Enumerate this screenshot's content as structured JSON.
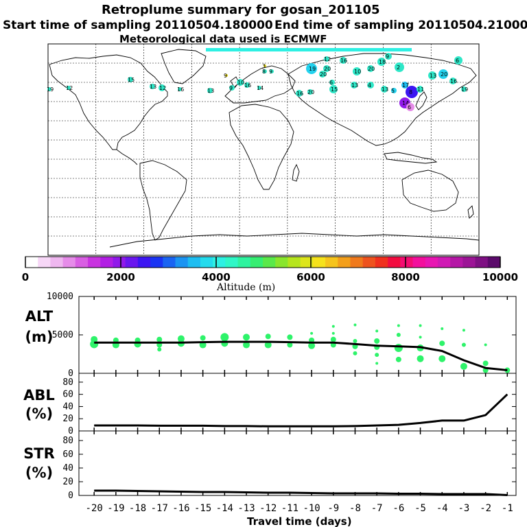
{
  "title": {
    "line1": "Retroplume summary for gosan_201105",
    "line2a": "Start time of sampling 20110504.180000",
    "line2b": "End time of sampling 20110504.210000",
    "line3": "Meteorological data used is ECMWF"
  },
  "colorbar": {
    "ticks": [
      "0",
      "2000",
      "4000",
      "6000",
      "8000",
      "10000"
    ],
    "label": "Altitude (m)",
    "colors": [
      "#ffffff",
      "#f7d7f7",
      "#efb7f0",
      "#e68ce9",
      "#d95fe3",
      "#c934e0",
      "#b21ee4",
      "#9119ea",
      "#6a17ef",
      "#3c16f2",
      "#1a34f3",
      "#1a64f2",
      "#1b94f2",
      "#1ebdf1",
      "#23dbed",
      "#2ef0e3",
      "#2ff7c7",
      "#2ef39f",
      "#36ee72",
      "#5ae94a",
      "#89e62d",
      "#b6e51d",
      "#dde51b",
      "#f6e21c",
      "#f6c41c",
      "#f39f1b",
      "#f07a1c",
      "#ee531e",
      "#f0301e",
      "#f20c3f",
      "#f40c72",
      "#f30f9d",
      "#e816b2",
      "#d01ab4",
      "#b517a6",
      "#9c1496",
      "#7e1083",
      "#5b0a6b"
    ]
  },
  "map_clusters": {
    "labels": [
      "19",
      "12",
      "15",
      "13",
      "12",
      "16",
      "13",
      "9",
      "10",
      "16",
      "14",
      "8",
      "9",
      "3",
      "9",
      "16",
      "20",
      "19",
      "20",
      "12",
      "16",
      "20",
      "6",
      "10",
      "20",
      "18",
      "9",
      "2",
      "17",
      "8",
      "14",
      "6",
      "11",
      "13",
      "20",
      "16",
      "6",
      "19",
      "15",
      "13",
      "4",
      "13",
      "5"
    ]
  },
  "chart_data": [
    {
      "name": "ALT",
      "type": "line+scatter",
      "ylabel": "ALT\n(m)",
      "ylabel_lines": [
        "ALT",
        "(m)"
      ],
      "ylim": [
        0,
        10000
      ],
      "yticks": [
        "0",
        "5000",
        "10000"
      ],
      "x": [
        -20,
        -19,
        -18,
        -17,
        -16,
        -15,
        -14,
        -13,
        -12,
        -11,
        -10,
        -9,
        -8,
        -7,
        -6,
        -5,
        -4,
        -3,
        -2,
        -1
      ],
      "series": [
        {
          "name": "mean altitude",
          "color": "#000000",
          "values": [
            4000,
            4000,
            4000,
            4000,
            4000,
            4050,
            4100,
            4100,
            4100,
            4050,
            4000,
            4000,
            3800,
            3600,
            3500,
            3400,
            2900,
            1700,
            700,
            400
          ]
        }
      ],
      "cluster_points": [
        {
          "x": -20,
          "y": 4400,
          "size": 5
        },
        {
          "x": -20,
          "y": 3800,
          "size": 6
        },
        {
          "x": -19,
          "y": 4300,
          "size": 4
        },
        {
          "x": -19,
          "y": 3700,
          "size": 5
        },
        {
          "x": -18,
          "y": 4300,
          "size": 4
        },
        {
          "x": -18,
          "y": 3800,
          "size": 5
        },
        {
          "x": -17,
          "y": 4400,
          "size": 4
        },
        {
          "x": -17,
          "y": 3700,
          "size": 4
        },
        {
          "x": -17,
          "y": 3100,
          "size": 3
        },
        {
          "x": -16,
          "y": 4500,
          "size": 5
        },
        {
          "x": -16,
          "y": 3900,
          "size": 5
        },
        {
          "x": -15,
          "y": 4600,
          "size": 4
        },
        {
          "x": -15,
          "y": 3700,
          "size": 5
        },
        {
          "x": -14,
          "y": 4700,
          "size": 6
        },
        {
          "x": -14,
          "y": 3900,
          "size": 5
        },
        {
          "x": -13,
          "y": 4700,
          "size": 5
        },
        {
          "x": -13,
          "y": 3700,
          "size": 5
        },
        {
          "x": -12,
          "y": 4800,
          "size": 4
        },
        {
          "x": -12,
          "y": 3700,
          "size": 5
        },
        {
          "x": -11,
          "y": 4700,
          "size": 4
        },
        {
          "x": -11,
          "y": 3700,
          "size": 4
        },
        {
          "x": -10,
          "y": 5200,
          "size": 2
        },
        {
          "x": -10,
          "y": 4300,
          "size": 4
        },
        {
          "x": -10,
          "y": 3600,
          "size": 5
        },
        {
          "x": -9,
          "y": 6100,
          "size": 2
        },
        {
          "x": -9,
          "y": 5200,
          "size": 2
        },
        {
          "x": -9,
          "y": 4400,
          "size": 4
        },
        {
          "x": -9,
          "y": 3700,
          "size": 4
        },
        {
          "x": -8,
          "y": 6300,
          "size": 2
        },
        {
          "x": -8,
          "y": 4200,
          "size": 3
        },
        {
          "x": -8,
          "y": 3500,
          "size": 4
        },
        {
          "x": -8,
          "y": 2600,
          "size": 3
        },
        {
          "x": -7,
          "y": 5500,
          "size": 2
        },
        {
          "x": -7,
          "y": 4200,
          "size": 4
        },
        {
          "x": -7,
          "y": 3400,
          "size": 4
        },
        {
          "x": -7,
          "y": 2400,
          "size": 3
        },
        {
          "x": -7,
          "y": 1300,
          "size": 2
        },
        {
          "x": -6,
          "y": 6200,
          "size": 2
        },
        {
          "x": -6,
          "y": 5000,
          "size": 3
        },
        {
          "x": -6,
          "y": 3300,
          "size": 6
        },
        {
          "x": -6,
          "y": 1800,
          "size": 4
        },
        {
          "x": -5,
          "y": 6200,
          "size": 2
        },
        {
          "x": -5,
          "y": 4700,
          "size": 2
        },
        {
          "x": -5,
          "y": 3300,
          "size": 5
        },
        {
          "x": -5,
          "y": 1900,
          "size": 5
        },
        {
          "x": -4,
          "y": 5800,
          "size": 2
        },
        {
          "x": -4,
          "y": 3900,
          "size": 4
        },
        {
          "x": -4,
          "y": 1900,
          "size": 5
        },
        {
          "x": -3,
          "y": 5600,
          "size": 2
        },
        {
          "x": -3,
          "y": 3700,
          "size": 3
        },
        {
          "x": -3,
          "y": 900,
          "size": 5
        },
        {
          "x": -2,
          "y": 3700,
          "size": 2
        },
        {
          "x": -2,
          "y": 1300,
          "size": 4
        },
        {
          "x": -2,
          "y": 400,
          "size": 4
        },
        {
          "x": -1,
          "y": 400,
          "size": 4
        }
      ]
    },
    {
      "name": "ABL",
      "type": "line",
      "ylabel_lines": [
        "ABL",
        "(%)"
      ],
      "ylim": [
        0,
        90
      ],
      "yticks": [
        "0",
        "20",
        "40",
        "60",
        "80"
      ],
      "x": [
        -20,
        -19,
        -18,
        -17,
        -16,
        -15,
        -14,
        -13,
        -12,
        -11,
        -10,
        -9,
        -8,
        -7,
        -6,
        -5,
        -4,
        -3,
        -2,
        -1
      ],
      "series": [
        {
          "name": "ABL fraction",
          "color": "#000000",
          "values": [
            9,
            9,
            9,
            8.5,
            8.5,
            8.5,
            8,
            8,
            7.5,
            7.5,
            7.5,
            7.5,
            8,
            9,
            10,
            13,
            17,
            17,
            26,
            60
          ]
        }
      ]
    },
    {
      "name": "STR",
      "type": "line",
      "ylabel_lines": [
        "STR",
        "(%)"
      ],
      "ylim": [
        0,
        90
      ],
      "yticks": [
        "0",
        "20",
        "40",
        "60",
        "80"
      ],
      "x": [
        -20,
        -19,
        -18,
        -17,
        -16,
        -15,
        -14,
        -13,
        -12,
        -11,
        -10,
        -9,
        -8,
        -7,
        -6,
        -5,
        -4,
        -3,
        -2,
        -1
      ],
      "series": [
        {
          "name": "stratospheric fraction",
          "color": "#000000",
          "values": [
            7,
            7,
            6.5,
            6,
            5.5,
            5,
            5,
            4.5,
            4,
            4,
            3.5,
            3,
            3,
            3,
            2.5,
            2.5,
            2,
            2,
            2,
            0.5
          ]
        }
      ]
    }
  ],
  "xaxis": {
    "ticks": [
      "-20",
      "-19",
      "-18",
      "-17",
      "-16",
      "-15",
      "-14",
      "-13",
      "-12",
      "-11",
      "-10",
      "-9",
      "-8",
      "-7",
      "-6",
      "-5",
      "-4",
      "-3",
      "-2",
      "-1"
    ],
    "label": "Travel time (days)"
  }
}
